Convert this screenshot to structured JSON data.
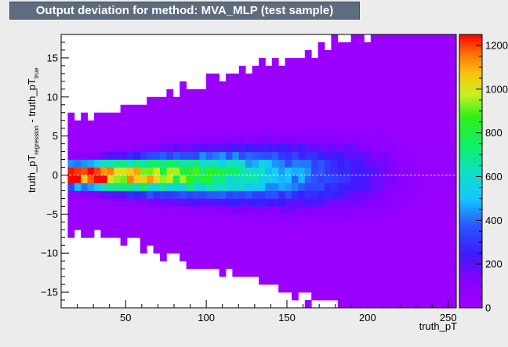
{
  "chart_data": {
    "type": "heatmap",
    "title": "Output deviation for method: MVA_MLP (test sample)",
    "xlabel": "truth_pT",
    "ylabel": {
      "main_a": "truth_pT",
      "sub_a": "regression",
      "mid": " - truth_pT",
      "sub_b": "true"
    },
    "xlim": [
      10,
      255
    ],
    "ylim": [
      -17,
      18
    ],
    "x_ticks": [
      50,
      100,
      150,
      200,
      250
    ],
    "x_tick_labels": [
      "50",
      "100",
      "150",
      "200",
      "250"
    ],
    "y_ticks": [
      -15,
      -10,
      -5,
      0,
      5,
      10,
      15
    ],
    "y_tick_labels": [
      "−15",
      "−10",
      "−5",
      "0",
      "5",
      "10",
      "15"
    ],
    "colorbar": {
      "min": 0,
      "max": 1250,
      "ticks": [
        0,
        200,
        400,
        600,
        800,
        1000,
        1200
      ],
      "tick_labels": [
        "0",
        "200",
        "400",
        "600",
        "800",
        "1000",
        "1200"
      ]
    },
    "bins": {
      "nx": 60,
      "ny": 35,
      "x0": 10,
      "x1": 255,
      "y0": -17,
      "y1": 18
    },
    "reference_line_y": 0,
    "grid": false,
    "legend": "none"
  }
}
